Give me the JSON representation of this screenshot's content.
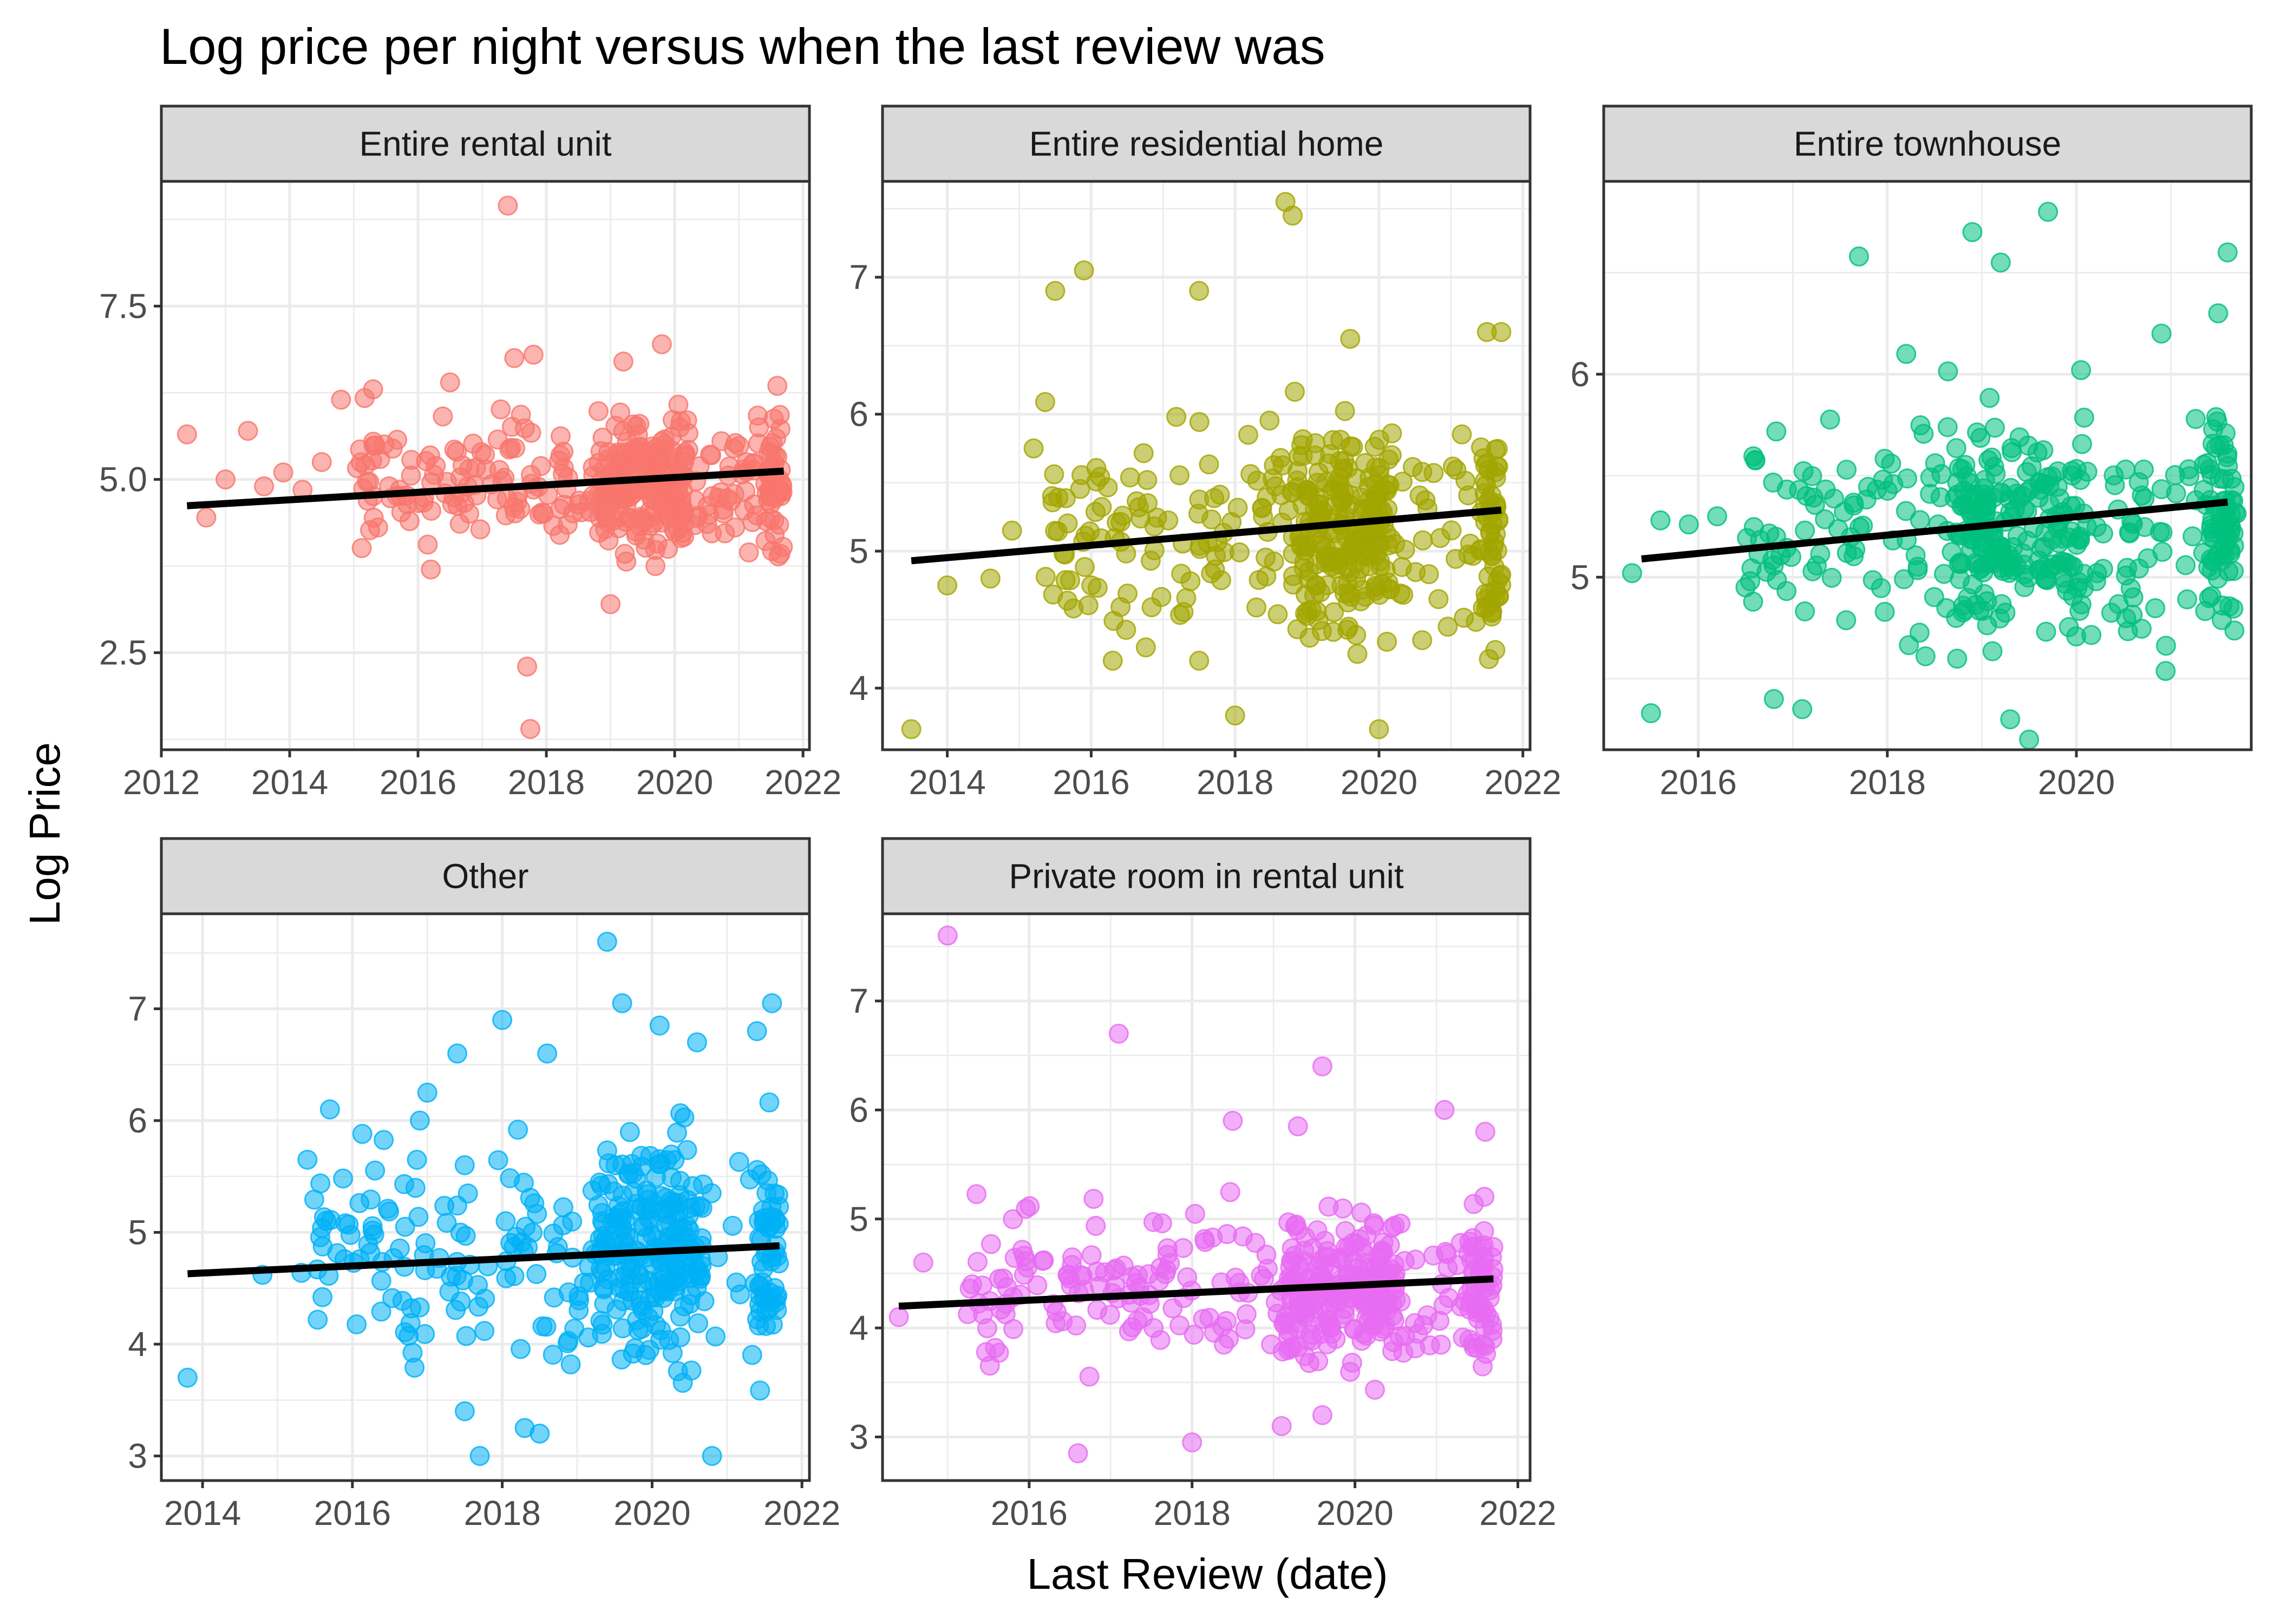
{
  "chart_data": {
    "type": "scatter",
    "title": "Log price per night versus when the last review was",
    "xlabel": "Last Review (date)",
    "ylabel": "Log Price",
    "grid": true,
    "legend": "none",
    "trend_line_color": "#000000",
    "panels": [
      {
        "name": "Entire rental unit",
        "color": "#F8766D",
        "xlim": [
          2012.0,
          2022.1
        ],
        "ylim": [
          1.1,
          9.3
        ],
        "x_ticks": [
          2012,
          2014,
          2016,
          2018,
          2020,
          2022
        ],
        "y_ticks": [
          2.5,
          5.0,
          7.5
        ],
        "y_tick_labels": [
          "2.5",
          "5.0",
          "7.5"
        ],
        "trend": [
          [
            2012.4,
            4.62
          ],
          [
            2021.7,
            5.12
          ]
        ],
        "cluster": {
          "x_range": [
            2015.0,
            2021.7
          ],
          "center": 4.95,
          "spread": 0.75,
          "density_peak": 2019.5
        },
        "points": [
          [
            2012.4,
            5.65
          ],
          [
            2012.7,
            4.45
          ],
          [
            2013.0,
            5.0
          ],
          [
            2013.35,
            5.7
          ],
          [
            2013.6,
            4.9
          ],
          [
            2013.9,
            5.1
          ],
          [
            2014.2,
            4.85
          ],
          [
            2014.5,
            5.25
          ],
          [
            2014.8,
            6.15
          ],
          [
            2015.3,
            6.3
          ],
          [
            2016.5,
            6.4
          ],
          [
            2017.4,
            8.95
          ],
          [
            2017.5,
            6.75
          ],
          [
            2017.8,
            6.8
          ],
          [
            2019.2,
            6.7
          ],
          [
            2019.8,
            6.95
          ],
          [
            2017.7,
            2.3
          ],
          [
            2017.75,
            1.4
          ],
          [
            2019.0,
            3.2
          ],
          [
            2019.7,
            3.75
          ],
          [
            2016.2,
            3.7
          ],
          [
            2021.6,
            6.35
          ]
        ]
      },
      {
        "name": "Entire residential home",
        "color": "#A3A500",
        "xlim": [
          2013.1,
          2022.1
        ],
        "ylim": [
          3.55,
          7.7
        ],
        "x_ticks": [
          2014,
          2016,
          2018,
          2020,
          2022
        ],
        "y_ticks": [
          4,
          5,
          6,
          7
        ],
        "y_tick_labels": [
          "4",
          "5",
          "6",
          "7"
        ],
        "trend": [
          [
            2013.5,
            4.93
          ],
          [
            2021.7,
            5.3
          ]
        ],
        "cluster": {
          "x_range": [
            2015.3,
            2021.7
          ],
          "center": 5.15,
          "spread": 0.6,
          "density_peak": 2019.5
        },
        "points": [
          [
            2013.5,
            3.7
          ],
          [
            2014.0,
            4.75
          ],
          [
            2014.6,
            4.8
          ],
          [
            2014.9,
            5.15
          ],
          [
            2015.2,
            5.75
          ],
          [
            2015.5,
            6.9
          ],
          [
            2015.9,
            7.05
          ],
          [
            2017.5,
            6.9
          ],
          [
            2018.7,
            7.55
          ],
          [
            2018.8,
            7.45
          ],
          [
            2019.6,
            6.55
          ],
          [
            2021.5,
            6.6
          ],
          [
            2021.7,
            6.6
          ],
          [
            2018.0,
            3.8
          ],
          [
            2020.0,
            3.7
          ],
          [
            2016.3,
            4.2
          ],
          [
            2017.5,
            4.2
          ],
          [
            2019.7,
            4.25
          ],
          [
            2020.6,
            4.35
          ]
        ]
      },
      {
        "name": "Entire townhouse",
        "color": "#00BF7D",
        "xlim": [
          2015.0,
          2021.85
        ],
        "ylim": [
          4.15,
          6.95
        ],
        "x_ticks": [
          2016,
          2018,
          2020
        ],
        "y_ticks": [
          5,
          6
        ],
        "y_tick_labels": [
          "5",
          "6"
        ],
        "trend": [
          [
            2015.4,
            5.09
          ],
          [
            2021.6,
            5.37
          ]
        ],
        "cluster": {
          "x_range": [
            2016.5,
            2021.7
          ],
          "center": 5.25,
          "spread": 0.45,
          "density_peak": 2019.4
        },
        "points": [
          [
            2015.3,
            5.02
          ],
          [
            2015.5,
            4.33
          ],
          [
            2015.6,
            5.28
          ],
          [
            2015.9,
            5.26
          ],
          [
            2016.2,
            5.3
          ],
          [
            2016.5,
            4.95
          ],
          [
            2017.7,
            6.58
          ],
          [
            2018.2,
            6.1
          ],
          [
            2018.9,
            6.7
          ],
          [
            2019.2,
            6.55
          ],
          [
            2019.7,
            6.8
          ],
          [
            2021.6,
            6.6
          ],
          [
            2021.5,
            6.3
          ],
          [
            2020.9,
            6.2
          ],
          [
            2019.5,
            4.2
          ],
          [
            2019.3,
            4.3
          ],
          [
            2017.1,
            4.35
          ],
          [
            2016.8,
            4.4
          ]
        ]
      },
      {
        "name": "Other",
        "color": "#00B0F6",
        "xlim": [
          2013.45,
          2022.1
        ],
        "ylim": [
          2.78,
          7.85
        ],
        "x_ticks": [
          2014,
          2016,
          2018,
          2020,
          2022
        ],
        "y_ticks": [
          3,
          4,
          5,
          6,
          7
        ],
        "y_tick_labels": [
          "3",
          "4",
          "5",
          "6",
          "7"
        ],
        "trend": [
          [
            2013.8,
            4.63
          ],
          [
            2021.7,
            4.88
          ]
        ],
        "cluster": {
          "x_range": [
            2015.3,
            2021.7
          ],
          "center": 4.85,
          "spread": 0.8,
          "density_peak": 2020.0
        },
        "points": [
          [
            2013.8,
            3.7
          ],
          [
            2014.8,
            4.62
          ],
          [
            2015.4,
            5.65
          ],
          [
            2015.7,
            6.1
          ],
          [
            2016.9,
            6.0
          ],
          [
            2017.0,
            6.25
          ],
          [
            2017.4,
            6.6
          ],
          [
            2018.0,
            6.9
          ],
          [
            2018.6,
            6.6
          ],
          [
            2019.4,
            7.6
          ],
          [
            2019.6,
            7.05
          ],
          [
            2020.1,
            6.85
          ],
          [
            2020.6,
            6.7
          ],
          [
            2021.4,
            6.8
          ],
          [
            2021.6,
            7.05
          ],
          [
            2017.7,
            3.0
          ],
          [
            2020.8,
            3.0
          ],
          [
            2017.5,
            3.4
          ],
          [
            2018.3,
            3.25
          ],
          [
            2018.5,
            3.2
          ]
        ]
      },
      {
        "name": "Private room in rental unit",
        "color": "#E76BF3",
        "xlim": [
          2014.2,
          2022.15
        ],
        "ylim": [
          2.6,
          7.8
        ],
        "x_ticks": [
          2016,
          2018,
          2020,
          2022
        ],
        "y_ticks": [
          3,
          4,
          5,
          6,
          7
        ],
        "y_tick_labels": [
          "3",
          "4",
          "5",
          "6",
          "7"
        ],
        "trend": [
          [
            2014.4,
            4.2
          ],
          [
            2021.7,
            4.45
          ]
        ],
        "cluster": {
          "x_range": [
            2015.2,
            2021.7
          ],
          "center": 4.35,
          "spread": 0.55,
          "density_peak": 2019.8
        },
        "points": [
          [
            2014.4,
            4.1
          ],
          [
            2014.7,
            4.6
          ],
          [
            2015.0,
            7.6
          ],
          [
            2015.3,
            4.4
          ],
          [
            2017.1,
            6.7
          ],
          [
            2019.6,
            6.4
          ],
          [
            2021.1,
            6.0
          ],
          [
            2016.6,
            2.85
          ],
          [
            2018.0,
            2.95
          ],
          [
            2019.1,
            3.1
          ],
          [
            2019.6,
            3.2
          ],
          [
            2021.6,
            5.8
          ],
          [
            2018.5,
            5.9
          ],
          [
            2019.3,
            5.85
          ]
        ]
      }
    ]
  }
}
